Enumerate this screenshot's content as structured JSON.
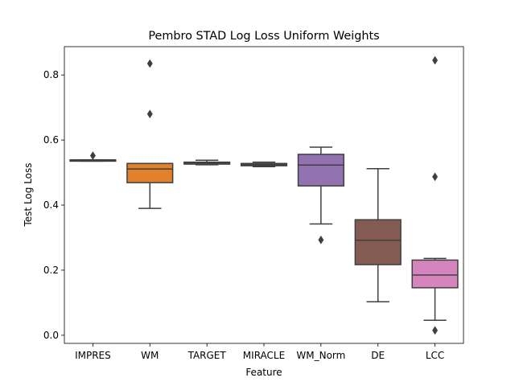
{
  "chart_data": {
    "type": "box",
    "title": "Pembro STAD Log Loss Uniform Weights",
    "xlabel": "Feature",
    "ylabel": "Test Log Loss",
    "ylim": [
      -0.025,
      0.887
    ],
    "yticks": [
      0.0,
      0.2,
      0.4,
      0.6,
      0.8
    ],
    "ytick_labels": [
      "0.0",
      "0.2",
      "0.4",
      "0.6",
      "0.8"
    ],
    "grid": false,
    "categories": [
      "IMPRES",
      "WM",
      "TARGET",
      "MIRACLE",
      "WM_Norm",
      "DE",
      "LCC"
    ],
    "boxes": [
      {
        "name": "IMPRES",
        "color": "#3274a1",
        "whislo": 0.535,
        "q1": 0.535,
        "med": 0.537,
        "q3": 0.539,
        "whishi": 0.539,
        "fliers": [
          0.552
        ]
      },
      {
        "name": "WM",
        "color": "#e1812c",
        "whislo": 0.39,
        "q1": 0.469,
        "med": 0.511,
        "q3": 0.528,
        "whishi": 0.528,
        "fliers": [
          0.68,
          0.835
        ]
      },
      {
        "name": "TARGET",
        "color": "#3a923a",
        "whislo": 0.524,
        "q1": 0.526,
        "med": 0.53,
        "q3": 0.532,
        "whishi": 0.538,
        "fliers": []
      },
      {
        "name": "MIRACLE",
        "color": "#c03d3e",
        "whislo": 0.518,
        "q1": 0.521,
        "med": 0.524,
        "q3": 0.528,
        "whishi": 0.532,
        "fliers": []
      },
      {
        "name": "WM_Norm",
        "color": "#9372b2",
        "whislo": 0.342,
        "q1": 0.459,
        "med": 0.523,
        "q3": 0.556,
        "whishi": 0.578,
        "fliers": [
          0.293
        ]
      },
      {
        "name": "DE",
        "color": "#845b53",
        "whislo": 0.103,
        "q1": 0.217,
        "med": 0.292,
        "q3": 0.355,
        "whishi": 0.512,
        "fliers": []
      },
      {
        "name": "LCC",
        "color": "#d684bd",
        "whislo": 0.046,
        "q1": 0.146,
        "med": 0.185,
        "q3": 0.231,
        "whishi": 0.236,
        "fliers": [
          0.015,
          0.487,
          0.845
        ]
      }
    ]
  }
}
